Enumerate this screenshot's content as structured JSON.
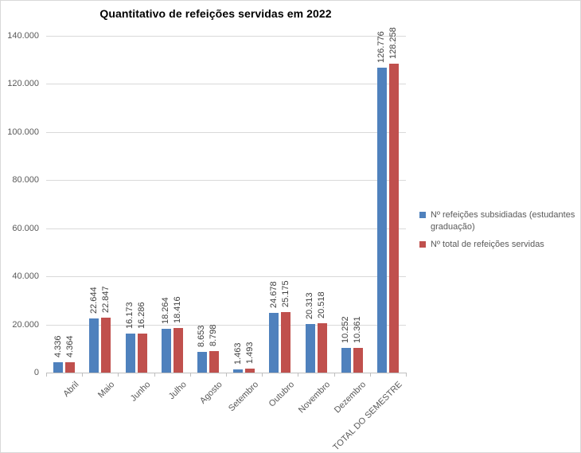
{
  "chart_data": {
    "type": "bar",
    "title": "Quantitativo de refeições servidas em 2022",
    "categories": [
      "Abril",
      "Maio",
      "Junho",
      "Julho",
      "Agosto",
      "Setembro",
      "Outubro",
      "Novembro",
      "Dezembro",
      "TOTAL DO SEMESTRE"
    ],
    "series": [
      {
        "name": "Nº refeições subsidiadas (estudantes graduação)",
        "color": "#4F81BD",
        "values": [
          4336,
          22644,
          16173,
          18264,
          8653,
          1463,
          24678,
          20313,
          10252,
          126776
        ],
        "labels": [
          "4.336",
          "22.644",
          "16.173",
          "18.264",
          "8.653",
          "1.463",
          "24.678",
          "20.313",
          "10.252",
          "126.776"
        ]
      },
      {
        "name": "Nº total de refeições servidas",
        "color": "#C0504D",
        "values": [
          4364,
          22847,
          16286,
          18416,
          8798,
          1493,
          25175,
          20518,
          10361,
          128258
        ],
        "labels": [
          "4.364",
          "22.847",
          "16.286",
          "18.416",
          "8.798",
          "1.493",
          "25.175",
          "20.518",
          "10.361",
          "128.258"
        ]
      }
    ],
    "y_axis": {
      "min": 0,
      "max": 140000,
      "step": 20000,
      "tick_labels": [
        "0",
        "20.000",
        "40.000",
        "60.000",
        "80.000",
        "100.000",
        "120.000",
        "140.000"
      ]
    },
    "grid": true,
    "legend_position": "right",
    "colors": {
      "gridline": "#D9D9D9",
      "axis": "#BFBFBF",
      "tick_text": "#595959",
      "data_label": "#404040",
      "title_text": "#000000"
    }
  }
}
